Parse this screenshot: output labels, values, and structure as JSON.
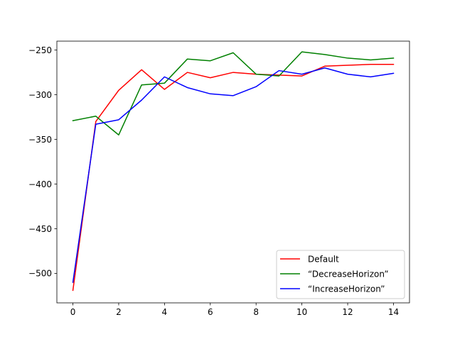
{
  "chart_data": {
    "type": "line",
    "title": "",
    "xlabel": "",
    "ylabel": "",
    "xlim": [
      -0.7,
      14.7
    ],
    "ylim": [
      -533,
      -240
    ],
    "x_ticks": [
      0,
      2,
      4,
      6,
      8,
      10,
      12,
      14
    ],
    "x_tick_labels": [
      "0",
      "2",
      "4",
      "6",
      "8",
      "10",
      "12",
      "14"
    ],
    "y_ticks": [
      -250,
      -300,
      -350,
      -400,
      -450,
      -500
    ],
    "y_tick_labels": [
      "−250",
      "−300",
      "−350",
      "−400",
      "−450",
      "−500"
    ],
    "grid": false,
    "legend_position": "lower-right",
    "x": [
      0,
      1,
      2,
      3,
      4,
      5,
      6,
      7,
      8,
      9,
      10,
      11,
      12,
      13,
      14
    ],
    "series": [
      {
        "name": "Default",
        "color": "#ff0000",
        "values": [
          -519,
          -330,
          -295,
          -272,
          -294,
          -275,
          -281,
          -275,
          -277,
          -278,
          -279,
          -268,
          -267,
          -266,
          -266
        ]
      },
      {
        "name": "“DecreaseHorizon”",
        "color": "#008000",
        "values": [
          -329,
          -324,
          -345,
          -289,
          -287,
          -260,
          -262,
          -253,
          -277,
          -279,
          -252,
          -255,
          -259,
          -261,
          -259
        ]
      },
      {
        "name": "“IncreaseHorizon”",
        "color": "#0000ff",
        "values": [
          -510,
          -333,
          -328,
          -306,
          -280,
          -292,
          -299,
          -301,
          -291,
          -273,
          -277,
          -270,
          -277,
          -280,
          -276
        ]
      }
    ]
  }
}
